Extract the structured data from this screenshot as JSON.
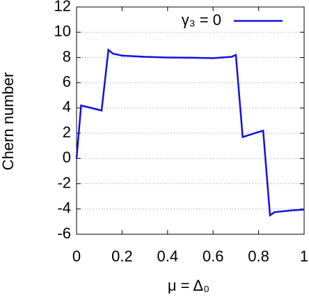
{
  "chart_data": {
    "type": "line",
    "xlabel": "μ = Δ₀",
    "ylabel": "Chern number",
    "x": [
      0,
      0.02,
      0.11,
      0.14,
      0.16,
      0.2,
      0.3,
      0.4,
      0.5,
      0.6,
      0.68,
      0.7,
      0.73,
      0.8,
      0.82,
      0.85,
      0.87,
      0.95,
      1.0
    ],
    "series": [
      {
        "name": "γ₃ = 0",
        "color": "#1010e0",
        "values": [
          0,
          4.2,
          3.8,
          8.6,
          8.3,
          8.15,
          8.05,
          8.0,
          7.98,
          7.95,
          8.05,
          8.2,
          1.7,
          2.1,
          2.2,
          -4.5,
          -4.25,
          -4.1,
          -4.05
        ]
      }
    ],
    "xlim": [
      0,
      1
    ],
    "xticks": [
      0,
      0.2,
      0.4,
      0.6,
      0.8,
      1
    ],
    "ylim": [
      -6,
      12
    ],
    "yticks": [
      -6,
      -4,
      -2,
      0,
      2,
      4,
      6,
      8,
      10,
      12
    ],
    "grid": true,
    "legend": "upper-right"
  }
}
